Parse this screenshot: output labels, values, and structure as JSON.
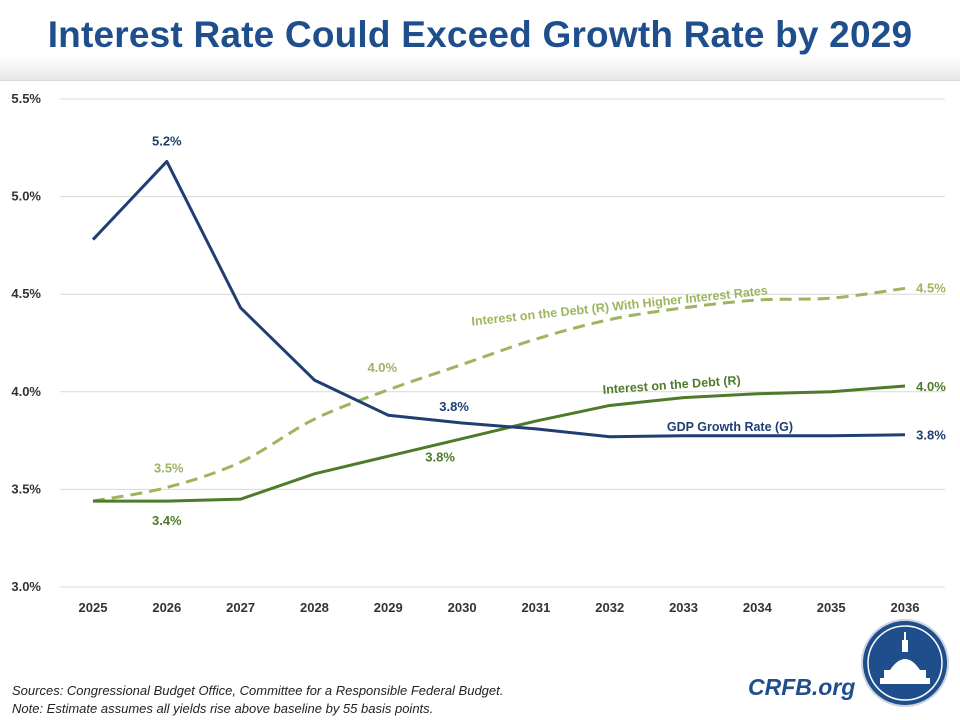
{
  "title": "Interest Rate Could Exceed Growth Rate by 2029",
  "footer": {
    "sources": "Sources: Congressional Budget Office, Committee for a Responsible Federal Budget.",
    "note": "Note: Estimate assumes all yields rise above baseline by 55 basis points."
  },
  "brand": "CRFB.org",
  "colors": {
    "gdp": "#1f3f73",
    "interest": "#4e7a2a",
    "higher": "#9cb55e",
    "grid": "#d9d9d9",
    "seal": "#1f4e8c"
  },
  "chart_data": {
    "type": "line",
    "x": [
      "2025",
      "2026",
      "2027",
      "2028",
      "2029",
      "2030",
      "2031",
      "2032",
      "2033",
      "2034",
      "2035",
      "2036"
    ],
    "ylim": [
      3.0,
      5.5
    ],
    "yticks": [
      "3.0%",
      "3.5%",
      "4.0%",
      "4.5%",
      "5.0%",
      "5.5%"
    ],
    "grid": true,
    "series": [
      {
        "name": "GDP Growth Rate (G)",
        "key": "gdp",
        "style": "solid",
        "values": [
          4.78,
          5.18,
          4.43,
          4.06,
          3.88,
          3.84,
          3.81,
          3.77,
          3.775,
          3.775,
          3.775,
          3.78
        ]
      },
      {
        "name": "Interest on the Debt (R)",
        "key": "interest",
        "style": "solid",
        "values": [
          3.44,
          3.44,
          3.45,
          3.58,
          3.67,
          3.76,
          3.85,
          3.93,
          3.97,
          3.99,
          4.0,
          4.03
        ]
      },
      {
        "name": "Interest on the Debt (R) With Higher Interest Rates",
        "key": "higher",
        "style": "dashed",
        "values": [
          3.44,
          3.51,
          3.64,
          3.86,
          4.01,
          4.14,
          4.27,
          4.37,
          4.43,
          4.47,
          4.48,
          4.53
        ]
      }
    ],
    "data_labels": [
      {
        "series": "gdp",
        "index": 1,
        "text": "5.2%"
      },
      {
        "series": "gdp",
        "index": 5,
        "text": "3.8%"
      },
      {
        "series": "gdp",
        "index": 11,
        "text": "3.8%"
      },
      {
        "series": "interest",
        "index": 1,
        "text": "3.4%"
      },
      {
        "series": "interest",
        "index": 5,
        "text": "3.8%"
      },
      {
        "series": "interest",
        "index": 11,
        "text": "4.0%"
      },
      {
        "series": "higher",
        "index": 1,
        "text": "3.5%"
      },
      {
        "series": "higher",
        "index": 4,
        "text": "4.0%"
      },
      {
        "series": "higher",
        "index": 11,
        "text": "4.5%"
      }
    ]
  }
}
